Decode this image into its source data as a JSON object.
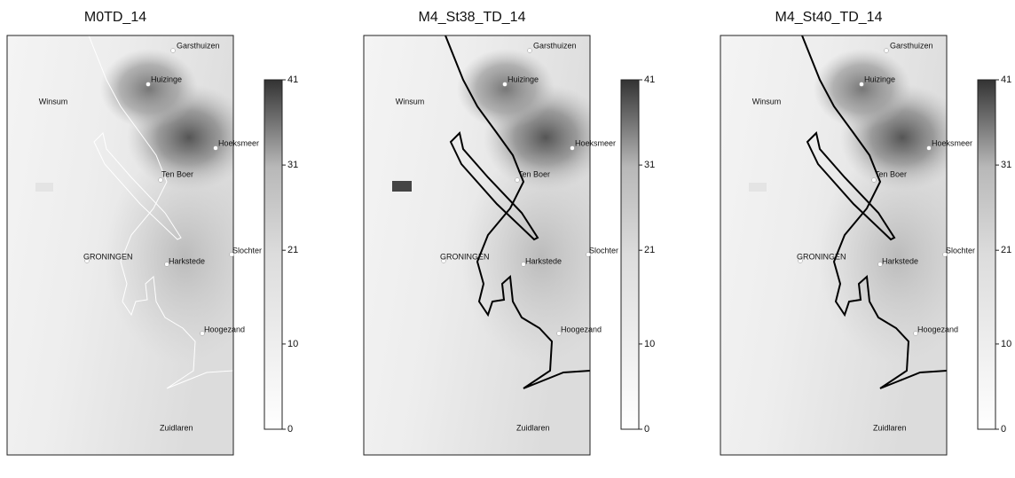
{
  "panels": [
    {
      "title": "M0TD_14",
      "places": [
        "Garsthuizen",
        "Huizinge",
        "Winsum",
        "Hoeksmeer",
        "Ten Boer",
        "GRONINGEN",
        "Harkstede",
        "Slochter",
        "Hoogezand",
        "Zuidlaren"
      ],
      "colorbar": {
        "lim": [
          0,
          41
        ],
        "ticks": [
          0,
          10,
          21,
          31,
          41
        ]
      },
      "outline_color": "#ffffff"
    },
    {
      "title": "M4_St38_TD_14",
      "places": [
        "Garsthuizen",
        "Huizinge",
        "Winsum",
        "Hoeksmeer",
        "Ten Boer",
        "GRONINGEN",
        "Harkstede",
        "Slochter",
        "Hoogezand",
        "Zuidlaren"
      ],
      "colorbar": {
        "lim": [
          0,
          41
        ],
        "ticks": [
          0,
          10,
          21,
          31,
          41
        ]
      },
      "outline_color": "#000000"
    },
    {
      "title": "M4_St40_TD_14",
      "places": [
        "Garsthuizen",
        "Huizinge",
        "Winsum",
        "Hoeksmeer",
        "Ten Boer",
        "GRONINGEN",
        "Harkstede",
        "Slochter",
        "Hoogezand",
        "Zuidlaren"
      ],
      "colorbar": {
        "lim": [
          0,
          41
        ],
        "ticks": [
          0,
          10,
          21,
          31,
          41
        ]
      },
      "outline_color": "#000000"
    }
  ]
}
